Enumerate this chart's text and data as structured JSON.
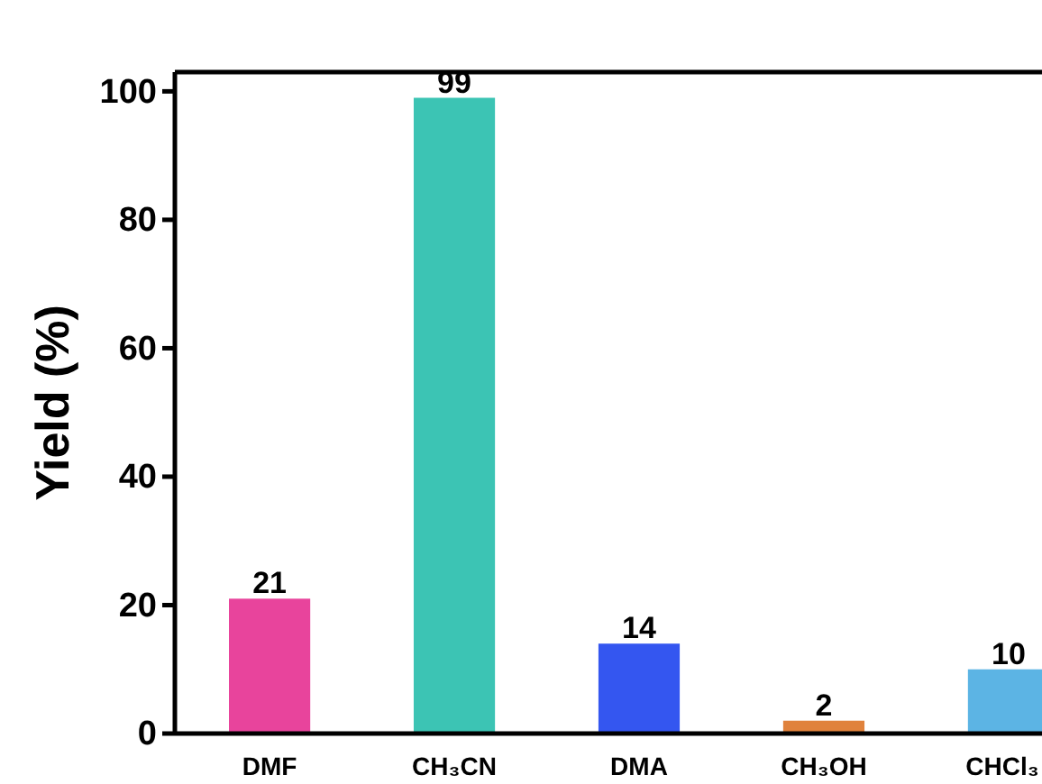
{
  "chart_data": {
    "type": "bar",
    "ylabel": "Yield (%)",
    "categories": [
      "DMF",
      "CH₃CN",
      "DMA",
      "CH₃OH",
      "CHCl₃"
    ],
    "values": [
      21,
      99,
      14,
      2,
      10
    ],
    "colors": [
      "#e8449c",
      "#3cc4b4",
      "#3456f0",
      "#e0823c",
      "#5cb4e4"
    ],
    "ylim": [
      0,
      103
    ],
    "yticks": [
      0,
      20,
      40,
      60,
      80,
      100
    ],
    "data_labels": true
  }
}
